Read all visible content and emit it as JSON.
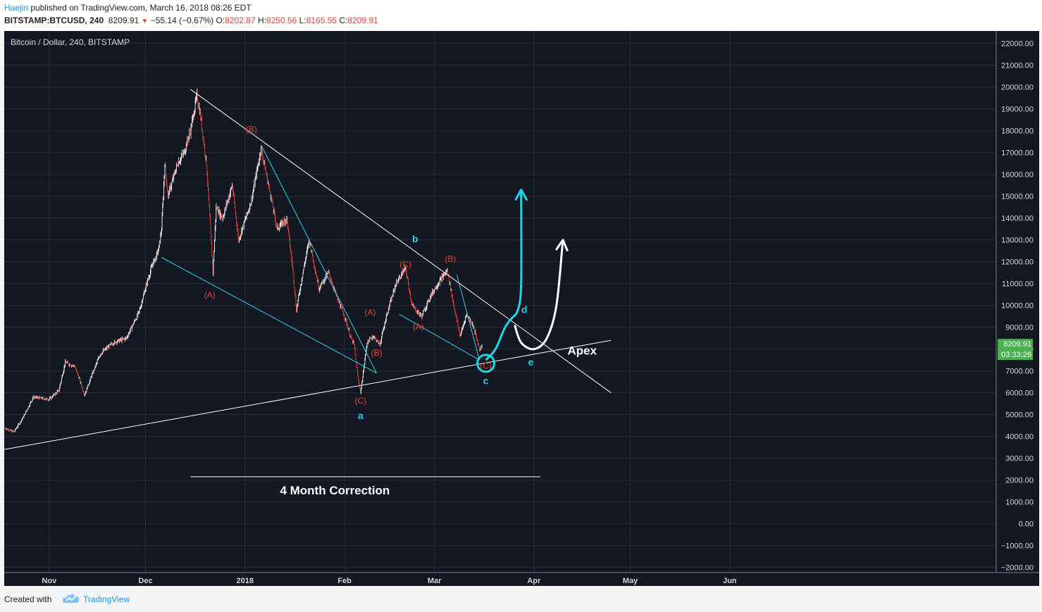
{
  "header": {
    "author": "Haejin",
    "published": "published on TradingView.com, March 16, 2018 08:26 EDT",
    "symbol": "BITSTAMP:BTCUSD, 240",
    "last": "8209.91",
    "change": "−55.14 (−0.67%)",
    "open_label": "O:",
    "open": "8202.87",
    "high_label": "H:",
    "high": "8250.56",
    "low_label": "L:",
    "low": "8165.55",
    "close_label": "C:",
    "close": "8209.91"
  },
  "footer": {
    "created_with": "Created with",
    "brand": "TradingView",
    "logo_icon": "tradingview-cloud-icon"
  },
  "colors": {
    "background": "#131722",
    "grid": "#2a2e39",
    "up": "#ffffff",
    "down": "#e0443a",
    "wave_label": "#e0443a",
    "cyan": "#22d3e8",
    "white": "#ffffff",
    "price_tag": "#4caf50"
  },
  "chart_data": {
    "type": "candlestick",
    "title": "Bitcoin / Dollar, 240, BITSTAMP",
    "x_ticks": [
      "Nov",
      "Dec",
      "2018",
      "Feb",
      "Mar",
      "Apr",
      "May",
      "Jun"
    ],
    "y_ticks": [
      "22000.00",
      "21000.00",
      "20000.00",
      "19000.00",
      "18000.00",
      "17000.00",
      "16000.00",
      "15000.00",
      "14000.00",
      "13000.00",
      "12000.00",
      "11000.00",
      "10000.00",
      "9000.00",
      "8000.00",
      "7000.00",
      "6000.00",
      "5000.00",
      "4000.00",
      "3000.00",
      "2000.00",
      "1000.00",
      "0.00",
      "−1000.00",
      "−2000.00"
    ],
    "ylim": [
      -2000,
      22000
    ],
    "grid": true,
    "last_price": "8209.91",
    "countdown": "03:33:26",
    "price_path": [
      [
        "2017-10-18",
        4400
      ],
      [
        "2017-10-21",
        4200
      ],
      [
        "2017-10-24",
        4900
      ],
      [
        "2017-10-27",
        5800
      ],
      [
        "2017-11-01",
        5700
      ],
      [
        "2017-11-04",
        6100
      ],
      [
        "2017-11-06",
        7400
      ],
      [
        "2017-11-09",
        7200
      ],
      [
        "2017-11-10",
        6800
      ],
      [
        "2017-11-12",
        5900
      ],
      [
        "2017-11-14",
        6700
      ],
      [
        "2017-11-17",
        7800
      ],
      [
        "2017-11-21",
        8300
      ],
      [
        "2017-11-25",
        8500
      ],
      [
        "2017-11-29",
        9700
      ],
      [
        "2017-12-01",
        10800
      ],
      [
        "2017-12-03",
        11800
      ],
      [
        "2017-12-05",
        12500
      ],
      [
        "2017-12-06",
        13500
      ],
      [
        "2017-12-07",
        16500
      ],
      [
        "2017-12-08",
        15000
      ],
      [
        "2017-12-11",
        16500
      ],
      [
        "2017-12-13",
        17000
      ],
      [
        "2017-12-15",
        18000
      ],
      [
        "2017-12-17",
        19600
      ],
      [
        "2017-12-18",
        18800
      ],
      [
        "2017-12-20",
        16500
      ],
      [
        "2017-12-22",
        11500
      ],
      [
        "2017-12-23",
        14500
      ],
      [
        "2017-12-25",
        14000
      ],
      [
        "2017-12-28",
        15500
      ],
      [
        "2017-12-30",
        13000
      ],
      [
        "2018-01-03",
        14800
      ],
      [
        "2018-01-06",
        17200
      ],
      [
        "2018-01-09",
        15000
      ],
      [
        "2018-01-11",
        13500
      ],
      [
        "2018-01-14",
        14000
      ],
      [
        "2018-01-16",
        11500
      ],
      [
        "2018-01-17",
        9800
      ],
      [
        "2018-01-19",
        11500
      ],
      [
        "2018-01-21",
        13000
      ],
      [
        "2018-01-24",
        10800
      ],
      [
        "2018-01-27",
        11500
      ],
      [
        "2018-01-30",
        10200
      ],
      [
        "2018-02-01",
        9500
      ],
      [
        "2018-02-03",
        8500
      ],
      [
        "2018-02-04",
        8200
      ],
      [
        "2018-02-05",
        6900
      ],
      [
        "2018-02-06",
        6000
      ],
      [
        "2018-02-08",
        8300
      ],
      [
        "2018-02-10",
        8600
      ],
      [
        "2018-02-12",
        8200
      ],
      [
        "2018-02-14",
        9500
      ],
      [
        "2018-02-17",
        11000
      ],
      [
        "2018-02-20",
        11700
      ],
      [
        "2018-02-22",
        10000
      ],
      [
        "2018-02-25",
        9500
      ],
      [
        "2018-02-28",
        10500
      ],
      [
        "2018-03-03",
        11200
      ],
      [
        "2018-03-05",
        11600
      ],
      [
        "2018-03-07",
        10000
      ],
      [
        "2018-03-09",
        8600
      ],
      [
        "2018-03-11",
        9600
      ],
      [
        "2018-03-13",
        9100
      ],
      [
        "2018-03-15",
        8000
      ],
      [
        "2018-03-16",
        8210
      ]
    ],
    "annotations": {
      "labels": [
        {
          "text": "(B)",
          "date": "2018-01-03",
          "price": 17950,
          "color": "red"
        },
        {
          "text": "(A)",
          "date": "2017-12-21",
          "price": 10350,
          "color": "red"
        },
        {
          "text": "(C)",
          "date": "2018-02-06",
          "price": 5500,
          "color": "red"
        },
        {
          "text": "(B)",
          "date": "2018-02-11",
          "price": 7700,
          "color": "red"
        },
        {
          "text": "(A)",
          "date": "2018-02-09",
          "price": 9550,
          "color": "red"
        },
        {
          "text": "(C)",
          "date": "2018-02-20",
          "price": 11750,
          "color": "red"
        },
        {
          "text": "(A)",
          "date": "2018-02-24",
          "price": 8900,
          "color": "red"
        },
        {
          "text": "(B)",
          "date": "2018-03-06",
          "price": 12000,
          "color": "red"
        },
        {
          "text": "(C)",
          "date": "2018-03-17",
          "price": 7100,
          "color": "red"
        },
        {
          "text": "a",
          "date": "2018-02-06",
          "price": 4800,
          "color": "cyan"
        },
        {
          "text": "b",
          "date": "2018-02-23",
          "price": 12900,
          "color": "cyan"
        },
        {
          "text": "c",
          "date": "2018-03-17",
          "price": 6400,
          "color": "cyan"
        },
        {
          "text": "d",
          "date": "2018-03-29",
          "price": 9650,
          "color": "cyan"
        },
        {
          "text": "e",
          "date": "2018-03-31",
          "price": 7250,
          "color": "cyan"
        },
        {
          "text": "Apex",
          "date": "2018-04-16",
          "price": 7750,
          "color": "white"
        },
        {
          "text": "4 Month Correction",
          "date": "2018-01-29",
          "price": 1350,
          "color": "white"
        }
      ],
      "trendlines": [
        {
          "name": "upper-resistance",
          "color": "white",
          "from": [
            "2017-12-15",
            19900
          ],
          "to": [
            "2018-04-25",
            6000
          ]
        },
        {
          "name": "lower-support",
          "color": "white",
          "from": [
            "2017-10-18",
            3400
          ],
          "to": [
            "2018-04-25",
            8400
          ]
        },
        {
          "name": "correction-span",
          "color": "white",
          "from": [
            "2017-12-15",
            2150
          ],
          "to": [
            "2018-04-03",
            2150
          ]
        },
        {
          "name": "channel-a-lower",
          "color": "cyan",
          "from": [
            "2017-12-06",
            12200
          ],
          "to": [
            "2018-02-11",
            6900
          ]
        },
        {
          "name": "channel-a-upper",
          "color": "cyan",
          "from": [
            "2018-01-06",
            17350
          ],
          "to": [
            "2018-02-11",
            6900
          ]
        },
        {
          "name": "channel-c-lower",
          "color": "cyan",
          "from": [
            "2018-02-18",
            9600
          ],
          "to": [
            "2018-03-15",
            7500
          ]
        },
        {
          "name": "channel-c-upper",
          "color": "cyan",
          "from": [
            "2018-03-08",
            11400
          ],
          "to": [
            "2018-03-15",
            7500
          ]
        }
      ],
      "cyan_path": [
        [
          "2018-03-17",
          7500
        ],
        [
          "2018-03-20",
          8000
        ],
        [
          "2018-03-23",
          9000
        ],
        [
          "2018-03-25",
          9400
        ],
        [
          "2018-03-27",
          9800
        ],
        [
          "2018-03-28",
          11000
        ],
        [
          "2018-03-28",
          15300
        ]
      ],
      "white_path": [
        [
          "2018-03-26",
          9100
        ],
        [
          "2018-03-28",
          8300
        ],
        [
          "2018-04-01",
          8000
        ],
        [
          "2018-04-05",
          8500
        ],
        [
          "2018-04-08",
          10000
        ],
        [
          "2018-04-10",
          13000
        ]
      ],
      "circle": {
        "date": "2018-03-17",
        "price": 7350
      }
    }
  }
}
